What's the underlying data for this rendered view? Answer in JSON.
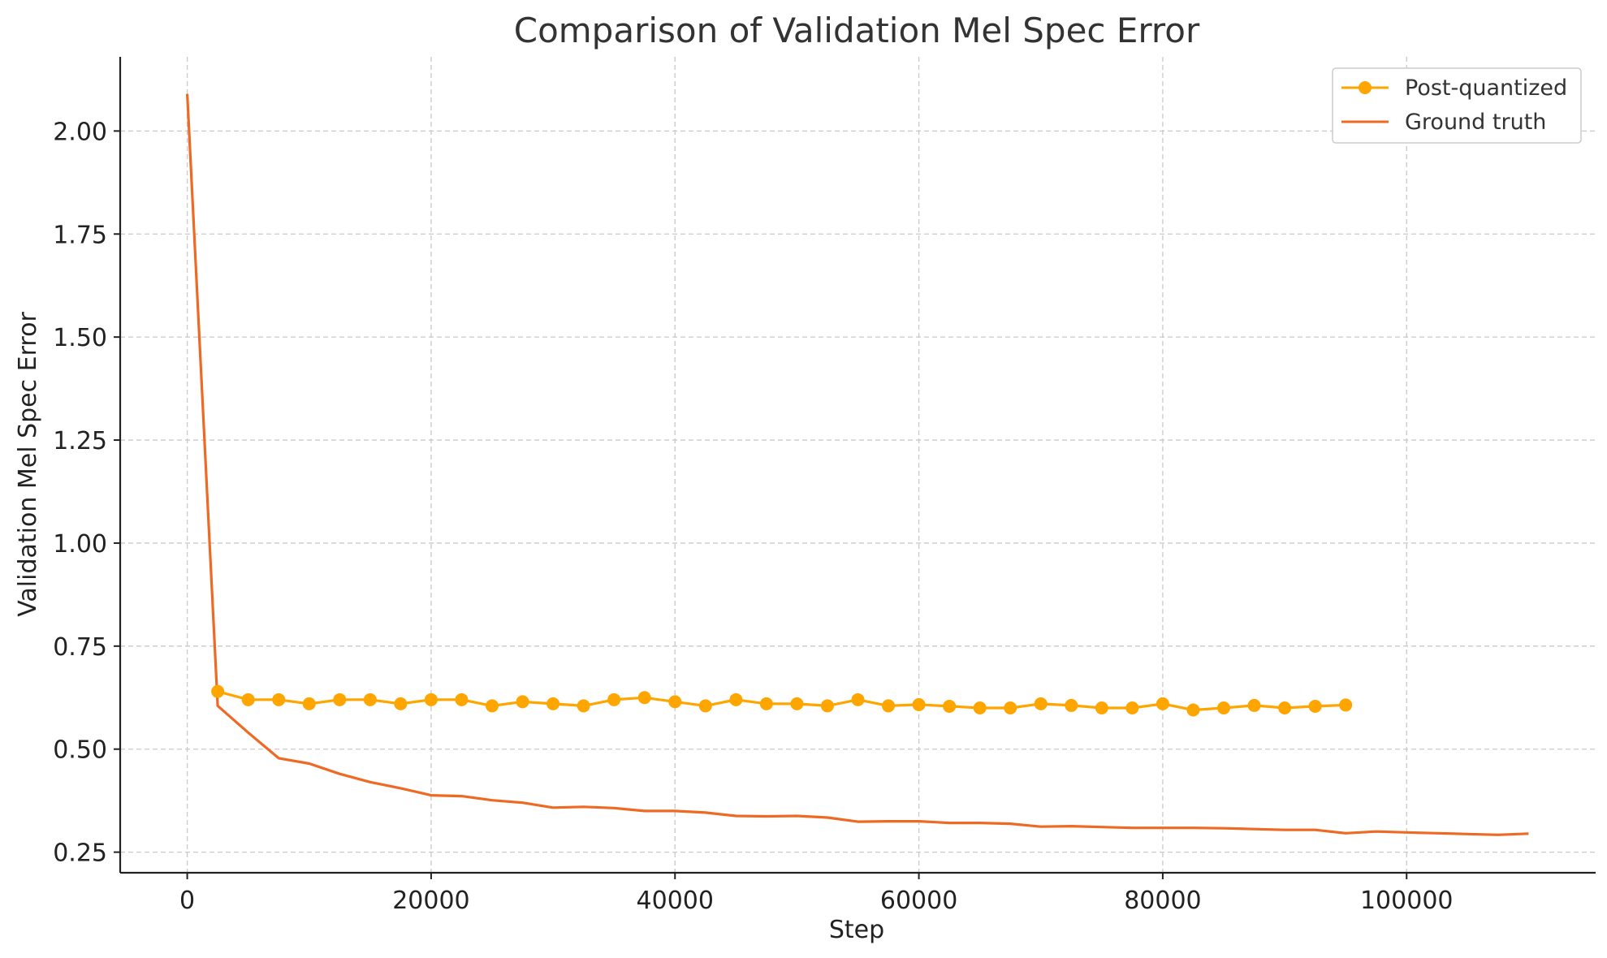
{
  "chart_data": {
    "type": "line",
    "title": "Comparison of Validation Mel Spec Error",
    "xlabel": "Step",
    "ylabel": "Validation Mel Spec Error",
    "xlim": [
      -5500,
      115500
    ],
    "ylim": [
      0.2,
      2.18
    ],
    "xticks": [
      0,
      20000,
      40000,
      60000,
      80000,
      100000
    ],
    "yticks": [
      0.25,
      0.5,
      0.75,
      1.0,
      1.25,
      1.5,
      1.75,
      2.0
    ],
    "ytick_labels": [
      "0.25",
      "0.50",
      "0.75",
      "1.00",
      "1.25",
      "1.50",
      "1.75",
      "2.00"
    ],
    "grid": true,
    "legend_position": "top-right",
    "series": [
      {
        "name": "Post-quantized",
        "color": "#FFA500",
        "marker": "circle",
        "x": [
          2500,
          5000,
          7500,
          10000,
          12500,
          15000,
          17500,
          20000,
          22500,
          25000,
          27500,
          30000,
          32500,
          35000,
          37500,
          40000,
          42500,
          45000,
          47500,
          50000,
          52500,
          55000,
          57500,
          60000,
          62500,
          65000,
          67500,
          70000,
          72500,
          75000,
          77500,
          80000,
          82500,
          85000,
          87500,
          90000,
          92500,
          95000
        ],
        "y": [
          0.64,
          0.62,
          0.62,
          0.61,
          0.62,
          0.62,
          0.61,
          0.62,
          0.62,
          0.605,
          0.615,
          0.61,
          0.605,
          0.62,
          0.625,
          0.615,
          0.605,
          0.62,
          0.61,
          0.61,
          0.605,
          0.62,
          0.605,
          0.608,
          0.604,
          0.6,
          0.6,
          0.61,
          0.606,
          0.6,
          0.6,
          0.61,
          0.595,
          0.6,
          0.606,
          0.6,
          0.604,
          0.607
        ]
      },
      {
        "name": "Ground truth",
        "color": "#EE6A24",
        "marker": "none",
        "x": [
          0,
          2500,
          5000,
          7500,
          10000,
          12500,
          15000,
          17500,
          20000,
          22500,
          25000,
          27500,
          30000,
          32500,
          35000,
          37500,
          40000,
          42500,
          45000,
          47500,
          50000,
          52500,
          55000,
          57500,
          60000,
          62500,
          65000,
          67500,
          70000,
          72500,
          75000,
          77500,
          80000,
          82500,
          85000,
          87500,
          90000,
          92500,
          95000,
          97500,
          100000,
          102500,
          105000,
          107500,
          110000
        ],
        "y": [
          2.09,
          0.605,
          0.54,
          0.478,
          0.465,
          0.44,
          0.42,
          0.405,
          0.388,
          0.386,
          0.376,
          0.37,
          0.358,
          0.36,
          0.357,
          0.35,
          0.35,
          0.346,
          0.338,
          0.337,
          0.338,
          0.334,
          0.324,
          0.325,
          0.325,
          0.321,
          0.321,
          0.319,
          0.312,
          0.313,
          0.311,
          0.309,
          0.309,
          0.309,
          0.308,
          0.306,
          0.304,
          0.304,
          0.296,
          0.3,
          0.298,
          0.296,
          0.294,
          0.292,
          0.295
        ]
      }
    ]
  }
}
